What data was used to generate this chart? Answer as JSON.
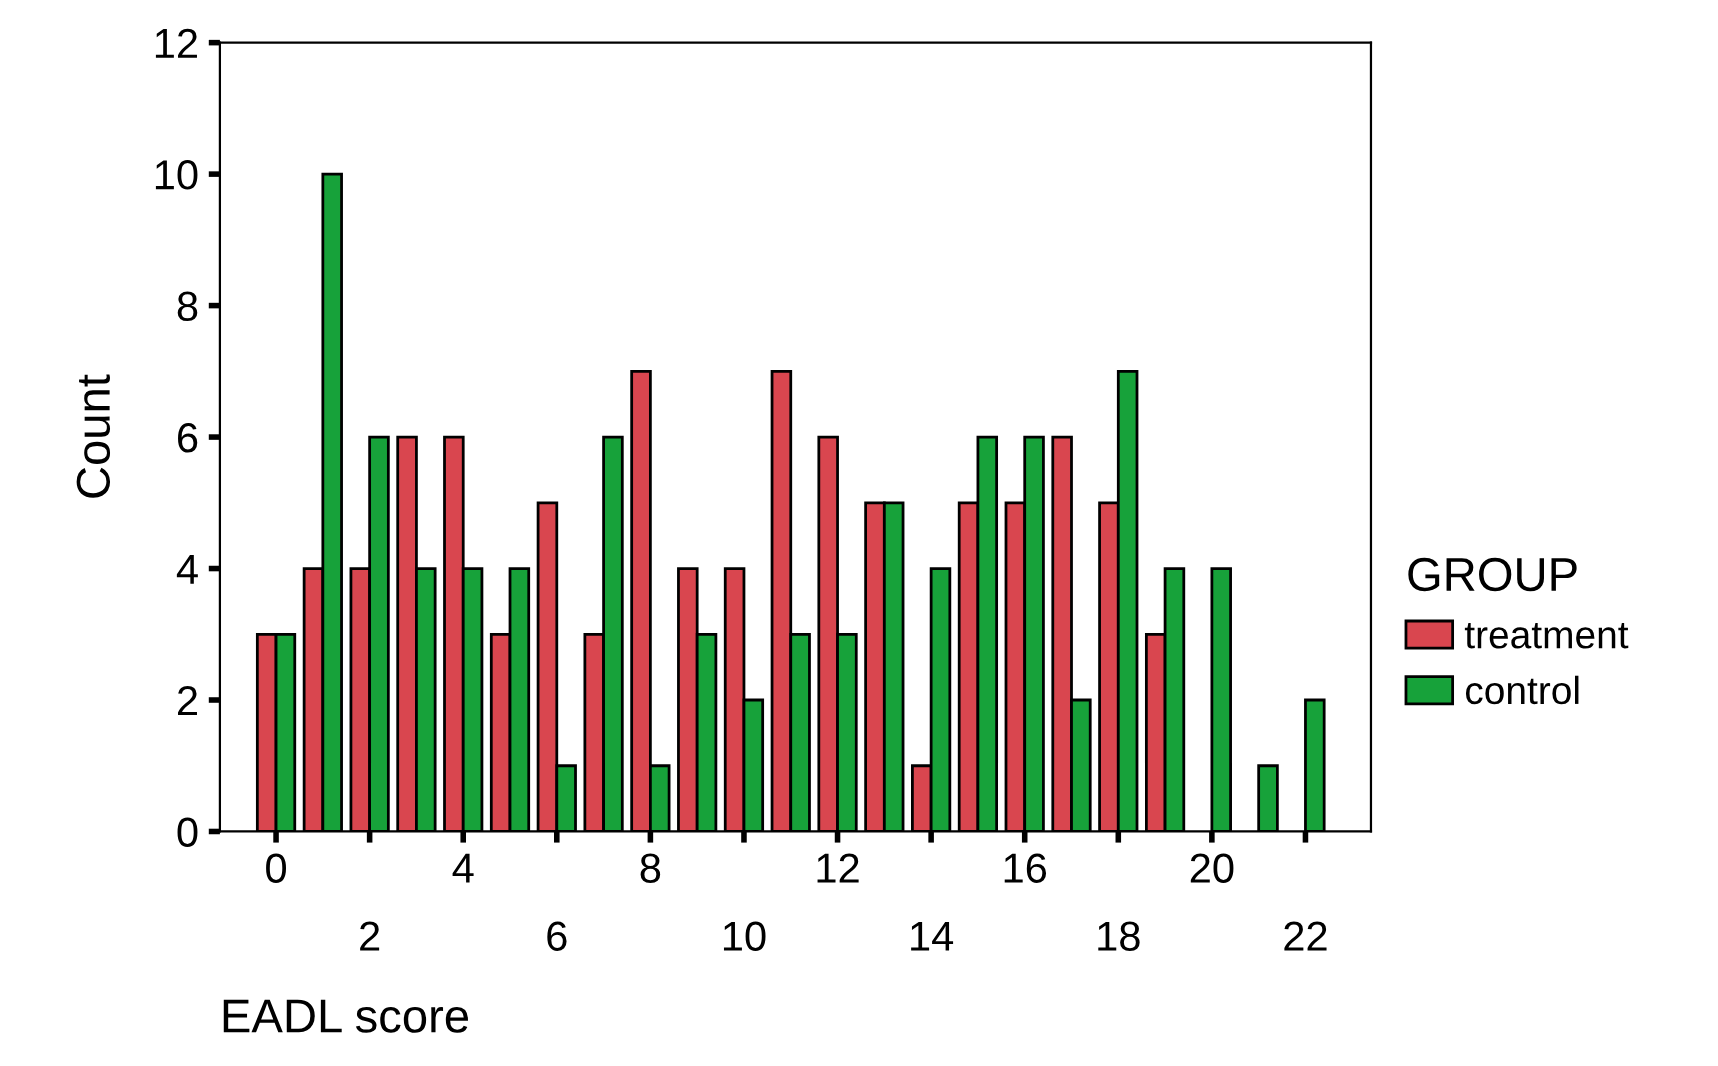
{
  "chart_data": {
    "type": "bar",
    "xlabel": "EADL score",
    "ylabel": "Count",
    "legend_title": "GROUP",
    "legend": "right",
    "categories": [
      "0",
      null,
      "2",
      null,
      "4",
      null,
      "6",
      null,
      "8",
      null,
      "10",
      null,
      "12",
      null,
      "14",
      null,
      "16",
      null,
      "18",
      null,
      "20",
      null,
      "22"
    ],
    "series": [
      {
        "name": "treatment",
        "color": "#d9464f",
        "values": [
          3,
          4,
          4,
          6,
          6,
          3,
          5,
          3,
          7,
          4,
          4,
          7,
          6,
          5,
          1,
          5,
          5,
          6,
          5,
          3,
          null,
          null,
          null
        ]
      },
      {
        "name": "control",
        "color": "#17a23a",
        "values": [
          3,
          10,
          6,
          4,
          4,
          4,
          1,
          6,
          1,
          3,
          2,
          3,
          3,
          5,
          4,
          6,
          6,
          2,
          7,
          4,
          4,
          1,
          2
        ]
      }
    ],
    "ylim": [
      0,
      12
    ],
    "yticks": [
      0,
      2,
      4,
      6,
      8,
      10,
      12
    ],
    "grid": false
  }
}
